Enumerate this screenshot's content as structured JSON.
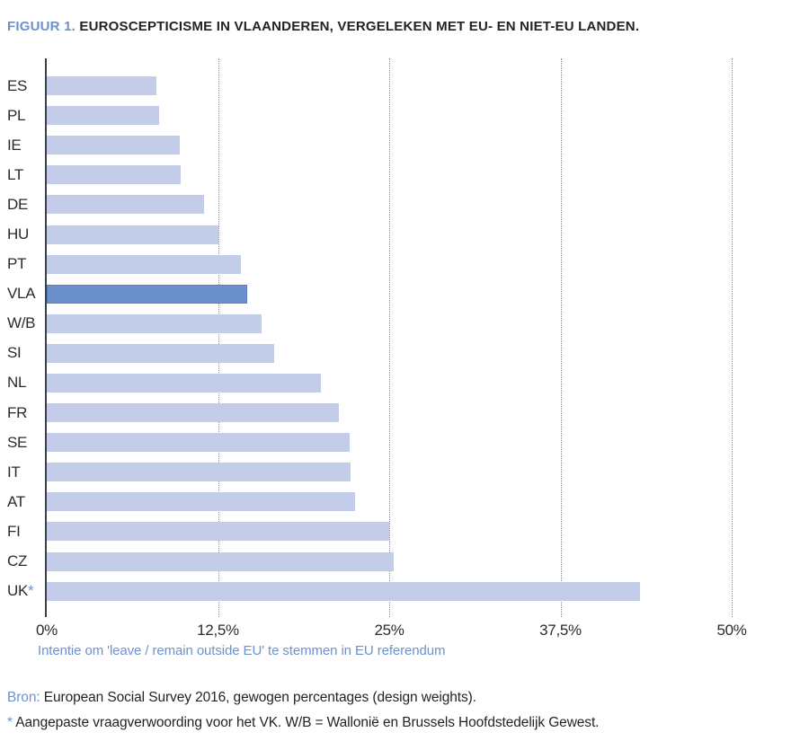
{
  "title": {
    "prefix": "FIGUUR 1.",
    "text": "EUROSCEPTICISME IN VLAANDEREN, VERGELEKEN MET EU- EN NIET-EU LANDEN."
  },
  "chart_data": {
    "type": "bar",
    "orientation": "horizontal",
    "categories": [
      "ES",
      "PL",
      "IE",
      "LT",
      "DE",
      "HU",
      "PT",
      "VLA",
      "W/B",
      "SI",
      "NL",
      "FR",
      "SE",
      "IT",
      "AT",
      "FI",
      "CZ",
      "UK*"
    ],
    "values": [
      8.0,
      8.2,
      9.7,
      9.8,
      11.5,
      12.5,
      14.2,
      14.6,
      15.7,
      16.6,
      20.0,
      21.3,
      22.1,
      22.2,
      22.5,
      25.0,
      25.3,
      43.3
    ],
    "highlighted_category": "VLA",
    "x_ticks": [
      "0%",
      "12,5%",
      "25%",
      "37,5%",
      "50%"
    ],
    "x_tick_values": [
      0,
      12.5,
      25,
      37.5,
      50
    ],
    "xlim": [
      0,
      54.5
    ],
    "xlabel": "Intentie om 'leave / remain outside EU' te stemmen in EU referendum",
    "grid": "dotted-vertical",
    "legend": "none",
    "bar_color": "#c3cdea",
    "highlight_color": "#6b90cc"
  },
  "footer": {
    "source_label": "Bron:",
    "source_text": " European Social Survey 2016, gewogen percentages (design weights).",
    "note_marker": "*",
    "note_text": " Aangepaste vraagverwoording voor het VK. W/B = Wallonië en Brussels Hoofdstedelijk Gewest."
  },
  "colors": {
    "accent_blue": "#6d92cb",
    "text_dark": "#232323"
  }
}
